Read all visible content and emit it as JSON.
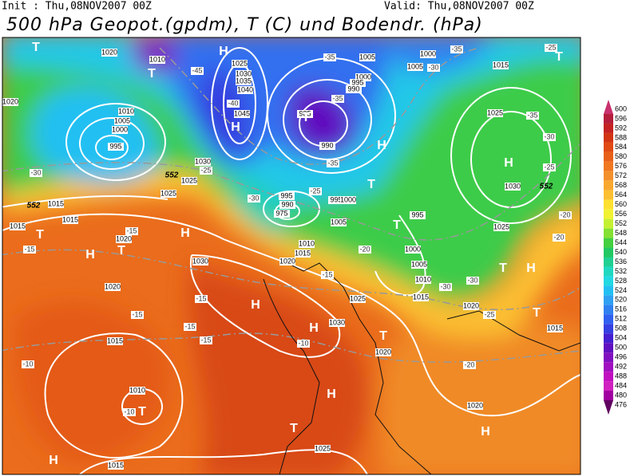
{
  "header": {
    "init": "Init : Thu,08NOV2007 00Z",
    "valid": "Valid: Thu,08NOV2007 00Z",
    "title": "500 hPa Geopot.(gpdm), T (C) und Bodendr. (hPa)"
  },
  "colorbar": {
    "ticks": [
      600,
      596,
      592,
      588,
      584,
      580,
      576,
      572,
      568,
      564,
      560,
      556,
      552,
      548,
      544,
      540,
      536,
      532,
      528,
      524,
      520,
      516,
      512,
      508,
      504,
      500,
      496,
      492,
      488,
      484,
      480,
      476
    ],
    "colors": [
      "#c8306e",
      "#b41e3c",
      "#c42222",
      "#d23412",
      "#e04a12",
      "#e86018",
      "#f07820",
      "#f4902c",
      "#f8a82e",
      "#fcc030",
      "#ffe030",
      "#f0f232",
      "#c4f032",
      "#84e032",
      "#44d040",
      "#22c862",
      "#20d092",
      "#20d8c0",
      "#22d8e2",
      "#22c0f2",
      "#30a0f2",
      "#3080f0",
      "#3060f0",
      "#3440e0",
      "#4420d0",
      "#6010c0",
      "#8010c0",
      "#a010c0",
      "#c010c0",
      "#d020c0",
      "#a000a0",
      "#600060"
    ]
  },
  "pressure_centers": [
    "T",
    "T",
    "H",
    "H",
    "T",
    "H",
    "T",
    "H",
    "T",
    "T",
    "H",
    "T",
    "H",
    "H",
    "H",
    "T",
    "T",
    "H",
    "T",
    "H",
    "T",
    "T",
    "H",
    "H",
    "T"
  ],
  "isobar_labels": [
    "1020",
    "1020",
    "1010",
    "1010",
    "1005",
    "1000",
    "995",
    "1025",
    "1030",
    "1035",
    "1040",
    "1045",
    "985",
    "990",
    "995",
    "1000",
    "1005",
    "995",
    "990",
    "975",
    "1030",
    "1025",
    "1025",
    "1015",
    "1015",
    "1015",
    "1020",
    "1030",
    "1020",
    "1015",
    "1010",
    "1015",
    "1025",
    "1030",
    "1025",
    "1020",
    "1020",
    "1015",
    "1010",
    "1005",
    "1000",
    "1020",
    "1015",
    "1010",
    "1025",
    "1030",
    "1025",
    "1015",
    "1000",
    "1005",
    "1005",
    "1000",
    "995",
    "990",
    "1020",
    "1015",
    "995"
  ],
  "temperature_labels": [
    "-45",
    "-40",
    "-35",
    "-35",
    "-35",
    "-35",
    "-30",
    "-25",
    "-30",
    "-25",
    "-30",
    "-35",
    "-25",
    "-30",
    "-25",
    "-20",
    "-20",
    "-30",
    "-30",
    "-25",
    "-20",
    "-20",
    "-15",
    "-15",
    "-15",
    "-15",
    "-15",
    "-15",
    "-15",
    "-10",
    "-10",
    "-10"
  ],
  "height_labels": [
    "552",
    "552",
    "552"
  ]
}
